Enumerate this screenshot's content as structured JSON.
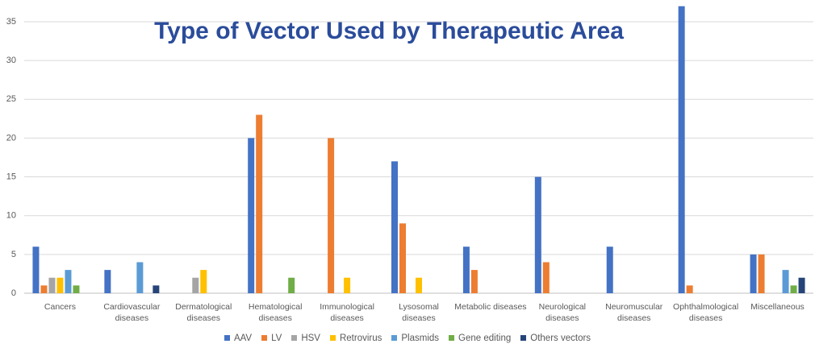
{
  "chart_data": {
    "type": "bar",
    "title": "Type of Vector Used by Therapeutic Area",
    "categories": [
      "Cancers",
      "Cardiovascular diseases",
      "Dermatological diseases",
      "Hematological diseases",
      "Immunological diseases",
      "Lysosomal diseases",
      "Metabolic diseases",
      "Neurological diseases",
      "Neuromuscular diseases",
      "Ophthalmological diseases",
      "Miscellaneous"
    ],
    "series": [
      {
        "name": "AAV",
        "color": "#4472c4",
        "values": [
          6,
          3,
          0,
          20,
          0,
          17,
          6,
          15,
          6,
          37,
          5
        ]
      },
      {
        "name": "LV",
        "color": "#ed7d31",
        "values": [
          1,
          0,
          0,
          23,
          20,
          9,
          3,
          4,
          0,
          1,
          5
        ]
      },
      {
        "name": "HSV",
        "color": "#a5a5a5",
        "values": [
          2,
          0,
          2,
          0,
          0,
          0,
          0,
          0,
          0,
          0,
          0
        ]
      },
      {
        "name": "Retrovirus",
        "color": "#ffc000",
        "values": [
          2,
          0,
          3,
          0,
          2,
          2,
          0,
          0,
          0,
          0,
          0
        ]
      },
      {
        "name": "Plasmids",
        "color": "#5b9bd5",
        "values": [
          3,
          4,
          0,
          0,
          0,
          0,
          0,
          0,
          0,
          0,
          3
        ]
      },
      {
        "name": "Gene editing",
        "color": "#70ad47",
        "values": [
          1,
          0,
          0,
          2,
          0,
          0,
          0,
          0,
          0,
          0,
          1
        ]
      },
      {
        "name": "Others vectors",
        "color": "#264478",
        "values": [
          0,
          1,
          0,
          0,
          0,
          0,
          0,
          0,
          0,
          0,
          2
        ]
      }
    ],
    "ylim": [
      0,
      37
    ],
    "yticks": [
      0,
      5,
      10,
      15,
      20,
      25,
      30,
      35
    ],
    "grid": true,
    "legend": "bottom"
  }
}
